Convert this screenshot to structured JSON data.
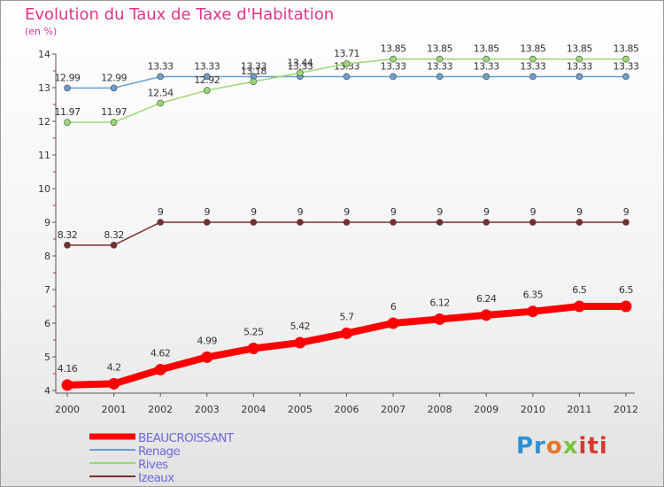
{
  "chart_data": {
    "type": "line",
    "title": "Evolution du Taux de Taxe d'Habitation",
    "subtitle": "(en %)",
    "x": [
      "2000",
      "2001",
      "2002",
      "2003",
      "2004",
      "2005",
      "2006",
      "2007",
      "2008",
      "2009",
      "2010",
      "2011",
      "2012"
    ],
    "ylim": [
      4,
      14
    ],
    "yticks": [
      "4",
      "5",
      "6",
      "7",
      "8",
      "9",
      "10",
      "11",
      "12",
      "13",
      "14"
    ],
    "grid": false,
    "legend_position": "bottom-left",
    "series": [
      {
        "name": "BEAUCROISSANT",
        "color": "#ff0000",
        "values": [
          4.16,
          4.2,
          4.62,
          4.99,
          5.25,
          5.42,
          5.7,
          6,
          6.12,
          6.24,
          6.35,
          6.5,
          6.5
        ],
        "labels": [
          "4.16",
          "4.2",
          "4.62",
          "4.99",
          "5.25",
          "5.42",
          "5.7",
          "6",
          "6.12",
          "6.24",
          "6.35",
          "6.5",
          "6.5"
        ]
      },
      {
        "name": "Renage",
        "color": "#6a9fcf",
        "values": [
          12.99,
          12.99,
          13.33,
          13.33,
          13.33,
          13.33,
          13.33,
          13.33,
          13.33,
          13.33,
          13.33,
          13.33,
          13.33
        ],
        "labels": [
          "12.99",
          "12.99",
          "13.33",
          "13.33",
          "13.33",
          "13.33",
          "13.33",
          "13.33",
          "13.33",
          "13.33",
          "13.33",
          "13.33",
          "13.33"
        ]
      },
      {
        "name": "Rives",
        "color": "#9cd873",
        "values": [
          11.97,
          11.97,
          12.54,
          12.92,
          13.18,
          13.44,
          13.71,
          13.85,
          13.85,
          13.85,
          13.85,
          13.85,
          13.85
        ],
        "labels": [
          "11.97",
          "11.97",
          "12.54",
          "12.92",
          "13.18",
          "13.44",
          "13.71",
          "13.85",
          "13.85",
          "13.85",
          "13.85",
          "13.85",
          "13.85"
        ]
      },
      {
        "name": "Izeaux",
        "color": "#7a2e2e",
        "values": [
          8.32,
          8.32,
          9,
          9,
          9,
          9,
          9,
          9,
          9,
          9,
          9,
          9,
          9
        ],
        "labels": [
          "8.32",
          "8.32",
          "9",
          "9",
          "9",
          "9",
          "9",
          "9",
          "9",
          "9",
          "9",
          "9",
          "9"
        ]
      }
    ]
  },
  "logo": {
    "parts": [
      "Pr",
      "o",
      "x",
      "iti"
    ]
  }
}
